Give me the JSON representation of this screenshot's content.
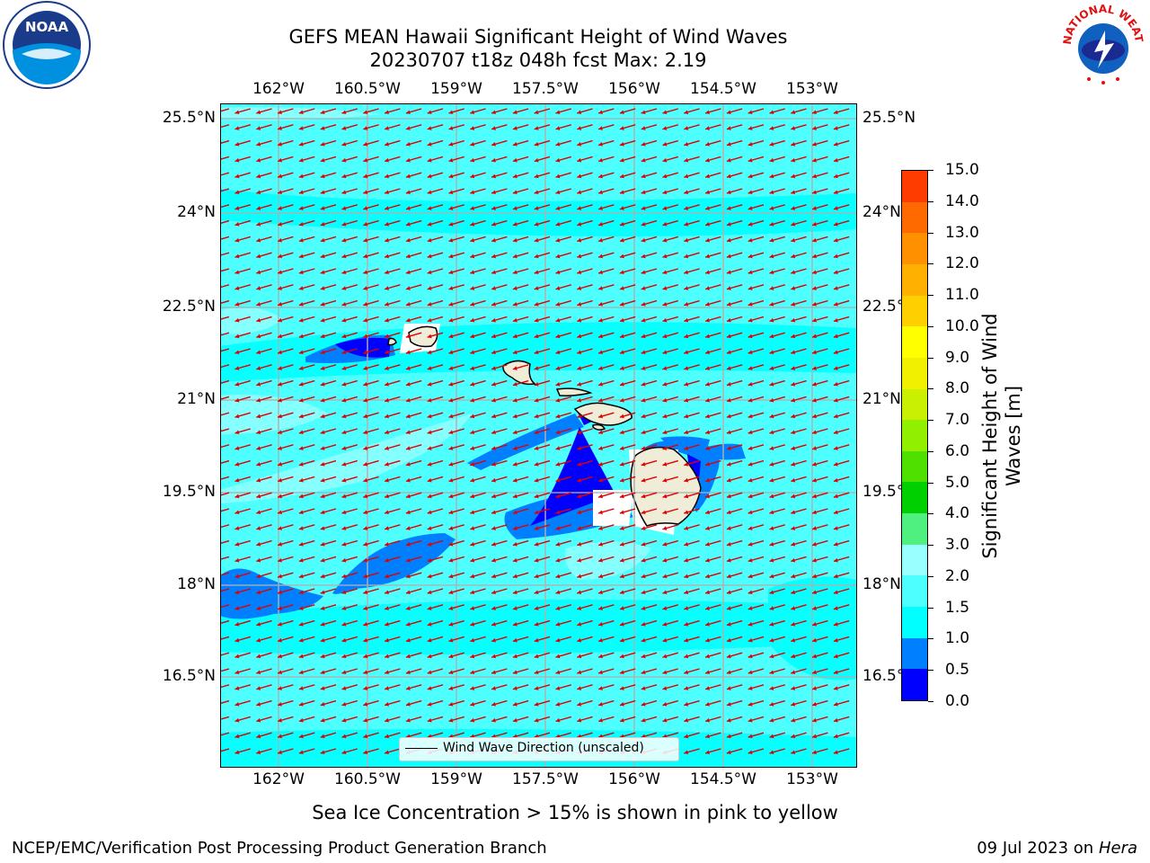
{
  "title": {
    "line1": "GEFS MEAN Hawaii Significant Height of Wind Waves",
    "line2": "20230707 t18z 048h fcst   Max: 2.19"
  },
  "map": {
    "lon_ticks": [
      "162°W",
      "160.5°W",
      "159°W",
      "157.5°W",
      "156°W",
      "154.5°W",
      "153°W"
    ],
    "lat_ticks": [
      "25.5°N",
      "24°N",
      "22.5°N",
      "21°N",
      "19.5°N",
      "18°N",
      "16.5°N"
    ],
    "lon_range": [
      -163.0,
      -152.2
    ],
    "lat_range": [
      15.2,
      25.8
    ],
    "legend": "Wind Wave Direction (unscaled)"
  },
  "colorbar": {
    "label": "Significant Height of Wind Waves [m]",
    "label_line1": "Significant Height of Wind",
    "label_line2": "Waves [m]",
    "ticks": [
      "15.0",
      "14.0",
      "13.0",
      "12.0",
      "11.0",
      "10.0",
      "9.0",
      "8.0",
      "7.0",
      "6.0",
      "5.0",
      "4.0",
      "3.0",
      "2.0",
      "1.5",
      "1.0",
      "0.5",
      "0.0"
    ],
    "colors": [
      "#0000ff",
      "#0080ff",
      "#00ffff",
      "#4dffff",
      "#9affff",
      "#50f080",
      "#00d000",
      "#50e000",
      "#90f000",
      "#c8f000",
      "#f0f000",
      "#ffff00",
      "#ffd000",
      "#ffb000",
      "#ff9000",
      "#ff6a00",
      "#ff3c00",
      "#ff0000"
    ]
  },
  "logos": {
    "noaa_text": "NOAA",
    "nws_text": "NATIONAL WEATHER SERVICE"
  },
  "footer": {
    "sea_ice": "Sea Ice Concentration > 15% is shown in pink to yellow",
    "branch": "NCEP/EMC/Verification Post Processing Product Generation Branch",
    "date": "09 Jul 2023 on ",
    "machine": "Hera"
  }
}
